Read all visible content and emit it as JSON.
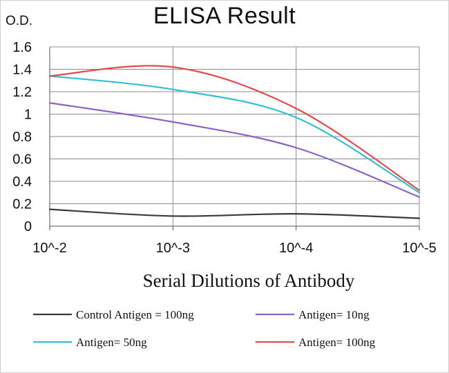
{
  "chart_data": {
    "type": "line",
    "title": "ELISA Result",
    "ylabel": "O.D.",
    "xlabel": "Serial Dilutions of Antibody",
    "categories": [
      "10^-2",
      "10^-3",
      "10^-4",
      "10^-5"
    ],
    "y_ticks": [
      "0",
      "0.2",
      "0.4",
      "0.6",
      "0.8",
      "1",
      "1.2",
      "1.4",
      "1.6"
    ],
    "ylim": [
      0,
      1.6
    ],
    "grid": true,
    "legend_position": "bottom",
    "series": [
      {
        "name": "Control Antigen = 100ng",
        "color": "#3a3a3a",
        "values": [
          0.15,
          0.09,
          0.11,
          0.07
        ]
      },
      {
        "name": "Antigen= 10ng",
        "color": "#8a62c8",
        "values": [
          1.1,
          0.93,
          0.7,
          0.26
        ]
      },
      {
        "name": "Antigen= 50ng",
        "color": "#32c0d8",
        "values": [
          1.34,
          1.22,
          0.97,
          0.3
        ]
      },
      {
        "name": "Antigen= 100ng",
        "color": "#e84a4a",
        "values": [
          1.34,
          1.42,
          1.05,
          0.32
        ]
      }
    ]
  }
}
